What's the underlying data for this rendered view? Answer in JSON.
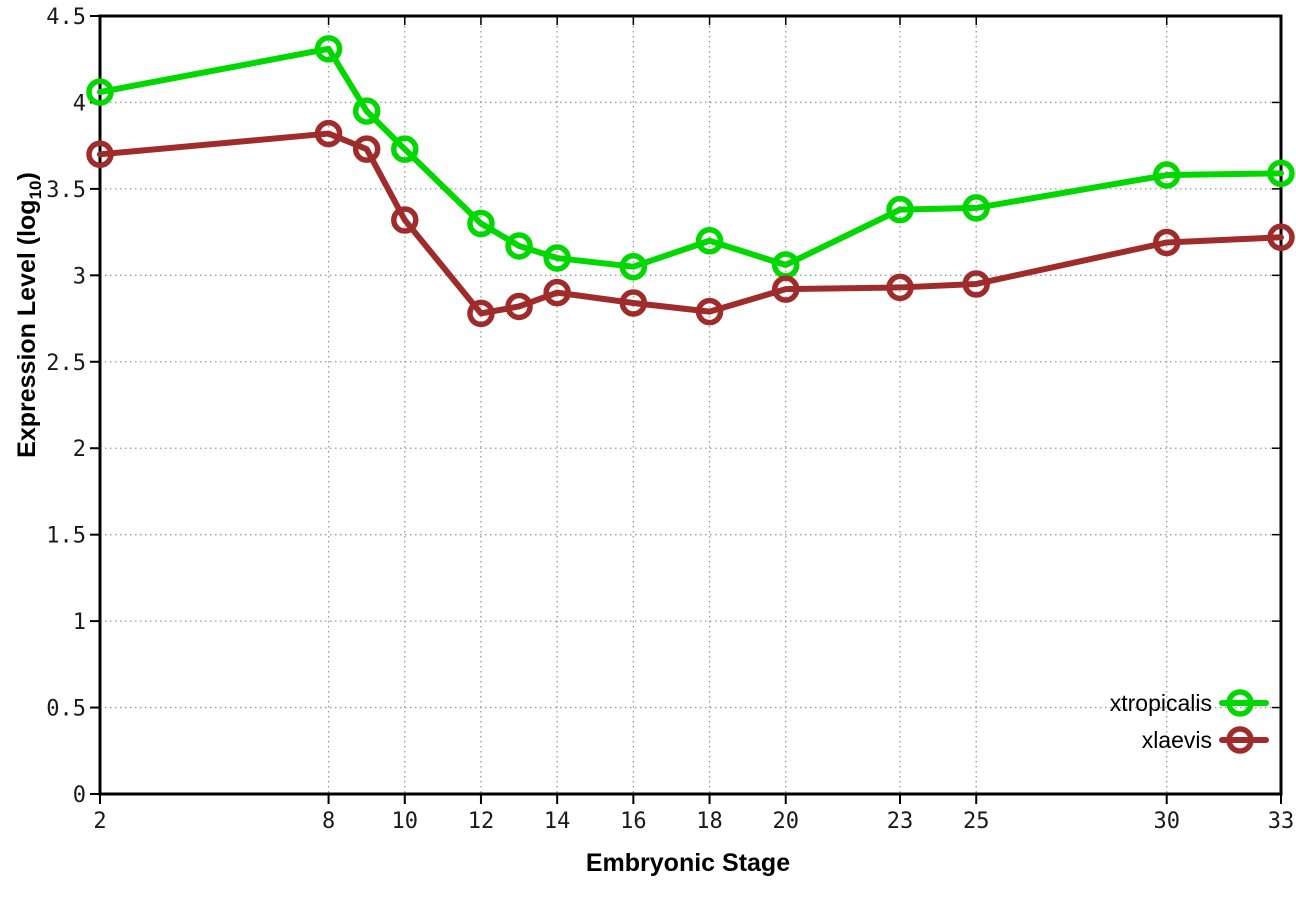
{
  "chart_data": {
    "type": "line",
    "title": "",
    "xlabel": "Embryonic Stage",
    "ylabel": "Expression Level (log10)",
    "ylabel_parts": {
      "prefix": "Expression Level (log",
      "subscript": "10",
      "suffix": ")"
    },
    "x": [
      2,
      8,
      9,
      10,
      12,
      13,
      14,
      16,
      18,
      20,
      23,
      25,
      30,
      33
    ],
    "series": [
      {
        "name": "xtropicalis",
        "color": "#00d800",
        "values": [
          4.06,
          4.31,
          3.95,
          3.73,
          3.3,
          3.17,
          3.1,
          3.05,
          3.2,
          3.06,
          3.38,
          3.39,
          3.58,
          3.59
        ]
      },
      {
        "name": "xlaevis",
        "color": "#a02b2b",
        "values": [
          3.7,
          3.82,
          3.73,
          3.32,
          2.78,
          2.82,
          2.9,
          2.84,
          2.79,
          2.92,
          2.93,
          2.95,
          3.19,
          3.22
        ]
      }
    ],
    "xticks": [
      2,
      8,
      10,
      12,
      14,
      16,
      18,
      20,
      23,
      25,
      30,
      33
    ],
    "yticks": [
      0,
      0.5,
      1,
      1.5,
      2,
      2.5,
      3,
      3.5,
      4,
      4.5
    ],
    "ytick_labels": [
      "0",
      "0.5",
      "1",
      "1.5",
      "2",
      "2.5",
      "3",
      "3.5",
      "4",
      "4.5"
    ],
    "xlim": [
      2,
      33
    ],
    "ylim": [
      0,
      4.5
    ],
    "grid": true,
    "legend_position": "bottom-right",
    "colors": {
      "border": "#000000",
      "grid": "#9a9a9a",
      "tick_text": "#1a1a1a",
      "legend_text": "#000000",
      "background": "#ffffff"
    }
  }
}
